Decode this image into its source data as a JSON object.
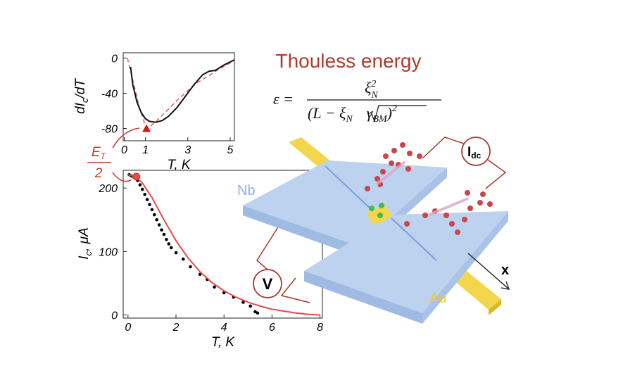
{
  "chart_data": [
    {
      "type": "line",
      "xlabel": "T, K",
      "ylabel": [
        "dI",
        "c",
        "/dT"
      ],
      "xlim": [
        -0.05,
        5.2
      ],
      "ylim": [
        -94,
        6
      ],
      "xticks": [
        0,
        1,
        3,
        5
      ],
      "yticks": [
        0,
        -40,
        -80
      ],
      "series": [
        {
          "mode": "dashed",
          "color": "#e05a5a",
          "x": [
            0.15,
            0.4,
            0.7,
            1.0,
            1.1,
            1.5,
            2.0,
            2.5,
            3.0,
            3.5,
            4.0,
            4.5,
            5.2
          ],
          "values": [
            0,
            -25,
            -55,
            -77,
            -80,
            -72,
            -60,
            -48,
            -37,
            -27,
            -20,
            -12,
            -3
          ]
        },
        {
          "mode": "solid",
          "color": "#111111",
          "x": [
            0.3,
            0.4,
            0.6,
            0.8,
            1.0,
            1.2,
            1.5,
            1.8,
            2.1,
            2.5,
            2.9,
            3.3,
            3.7,
            4.0,
            4.3,
            4.7,
            5.2
          ],
          "values": [
            -10,
            -30,
            -50,
            -62,
            -69,
            -72,
            -73,
            -71,
            -66,
            -56,
            -43,
            -30,
            -19,
            -15,
            -14,
            -8,
            -2
          ]
        },
        {
          "mode": "markers",
          "marker": "triangle",
          "color": "#e01010",
          "x": [
            1.05
          ],
          "values": [
            -80
          ]
        }
      ]
    },
    {
      "type": "line",
      "xlabel": "T, K",
      "ylabel": [
        "I",
        "c",
        ", μA"
      ],
      "xlim": [
        -0.2,
        8.1
      ],
      "ylim": [
        -5,
        228
      ],
      "xticks": [
        0,
        2,
        4,
        6,
        8
      ],
      "yticks": [
        0,
        100,
        200
      ],
      "series": [
        {
          "mode": "markers",
          "marker": "dot",
          "color": "#000000",
          "x": [
            0.05,
            0.15,
            0.25,
            0.4,
            0.5,
            0.6,
            0.7,
            0.8,
            0.9,
            1.0,
            1.1,
            1.2,
            1.3,
            1.4,
            1.5,
            1.6,
            1.7,
            1.8,
            2.0,
            2.3,
            2.6,
            3.0,
            3.3,
            3.6,
            4.0,
            4.4,
            4.8,
            5.1,
            5.3,
            5.4
          ],
          "values": [
            221,
            219,
            217,
            212,
            205,
            198,
            190,
            182,
            174,
            166,
            158,
            150,
            142,
            134,
            127,
            119,
            112,
            106,
            98,
            88,
            76,
            64,
            56,
            44,
            35,
            28,
            20,
            14,
            5,
            3
          ]
        },
        {
          "mode": "solid",
          "color": "#e84a4a",
          "x": [
            0,
            0.3,
            0.6,
            1,
            1.5,
            2,
            2.5,
            3,
            3.5,
            4,
            4.5,
            5,
            5.5,
            6,
            6.5,
            7,
            7.5,
            8
          ],
          "values": [
            221,
            218,
            208,
            185,
            150,
            117,
            90,
            68,
            51,
            38,
            28,
            20,
            14,
            9,
            6,
            3,
            1,
            0
          ]
        },
        {
          "mode": "markers",
          "marker": "circle",
          "color": "#e84a4a",
          "x": [
            0.35
          ],
          "values": [
            218
          ]
        }
      ]
    }
  ],
  "annotation": {
    "num": [
      "E",
      "T"
    ],
    "den": "2"
  },
  "diagram": {
    "title": "Thouless energy",
    "formula": {
      "lhs": "ε =",
      "num": [
        "ξ",
        "2",
        "N"
      ],
      "den": [
        "(L − ξ",
        "N",
        "γ",
        "BM",
        ")",
        "2"
      ]
    },
    "nb": "Nb",
    "au": "Au",
    "v": "V",
    "idc": [
      "I",
      "dc"
    ],
    "axis": "x"
  }
}
